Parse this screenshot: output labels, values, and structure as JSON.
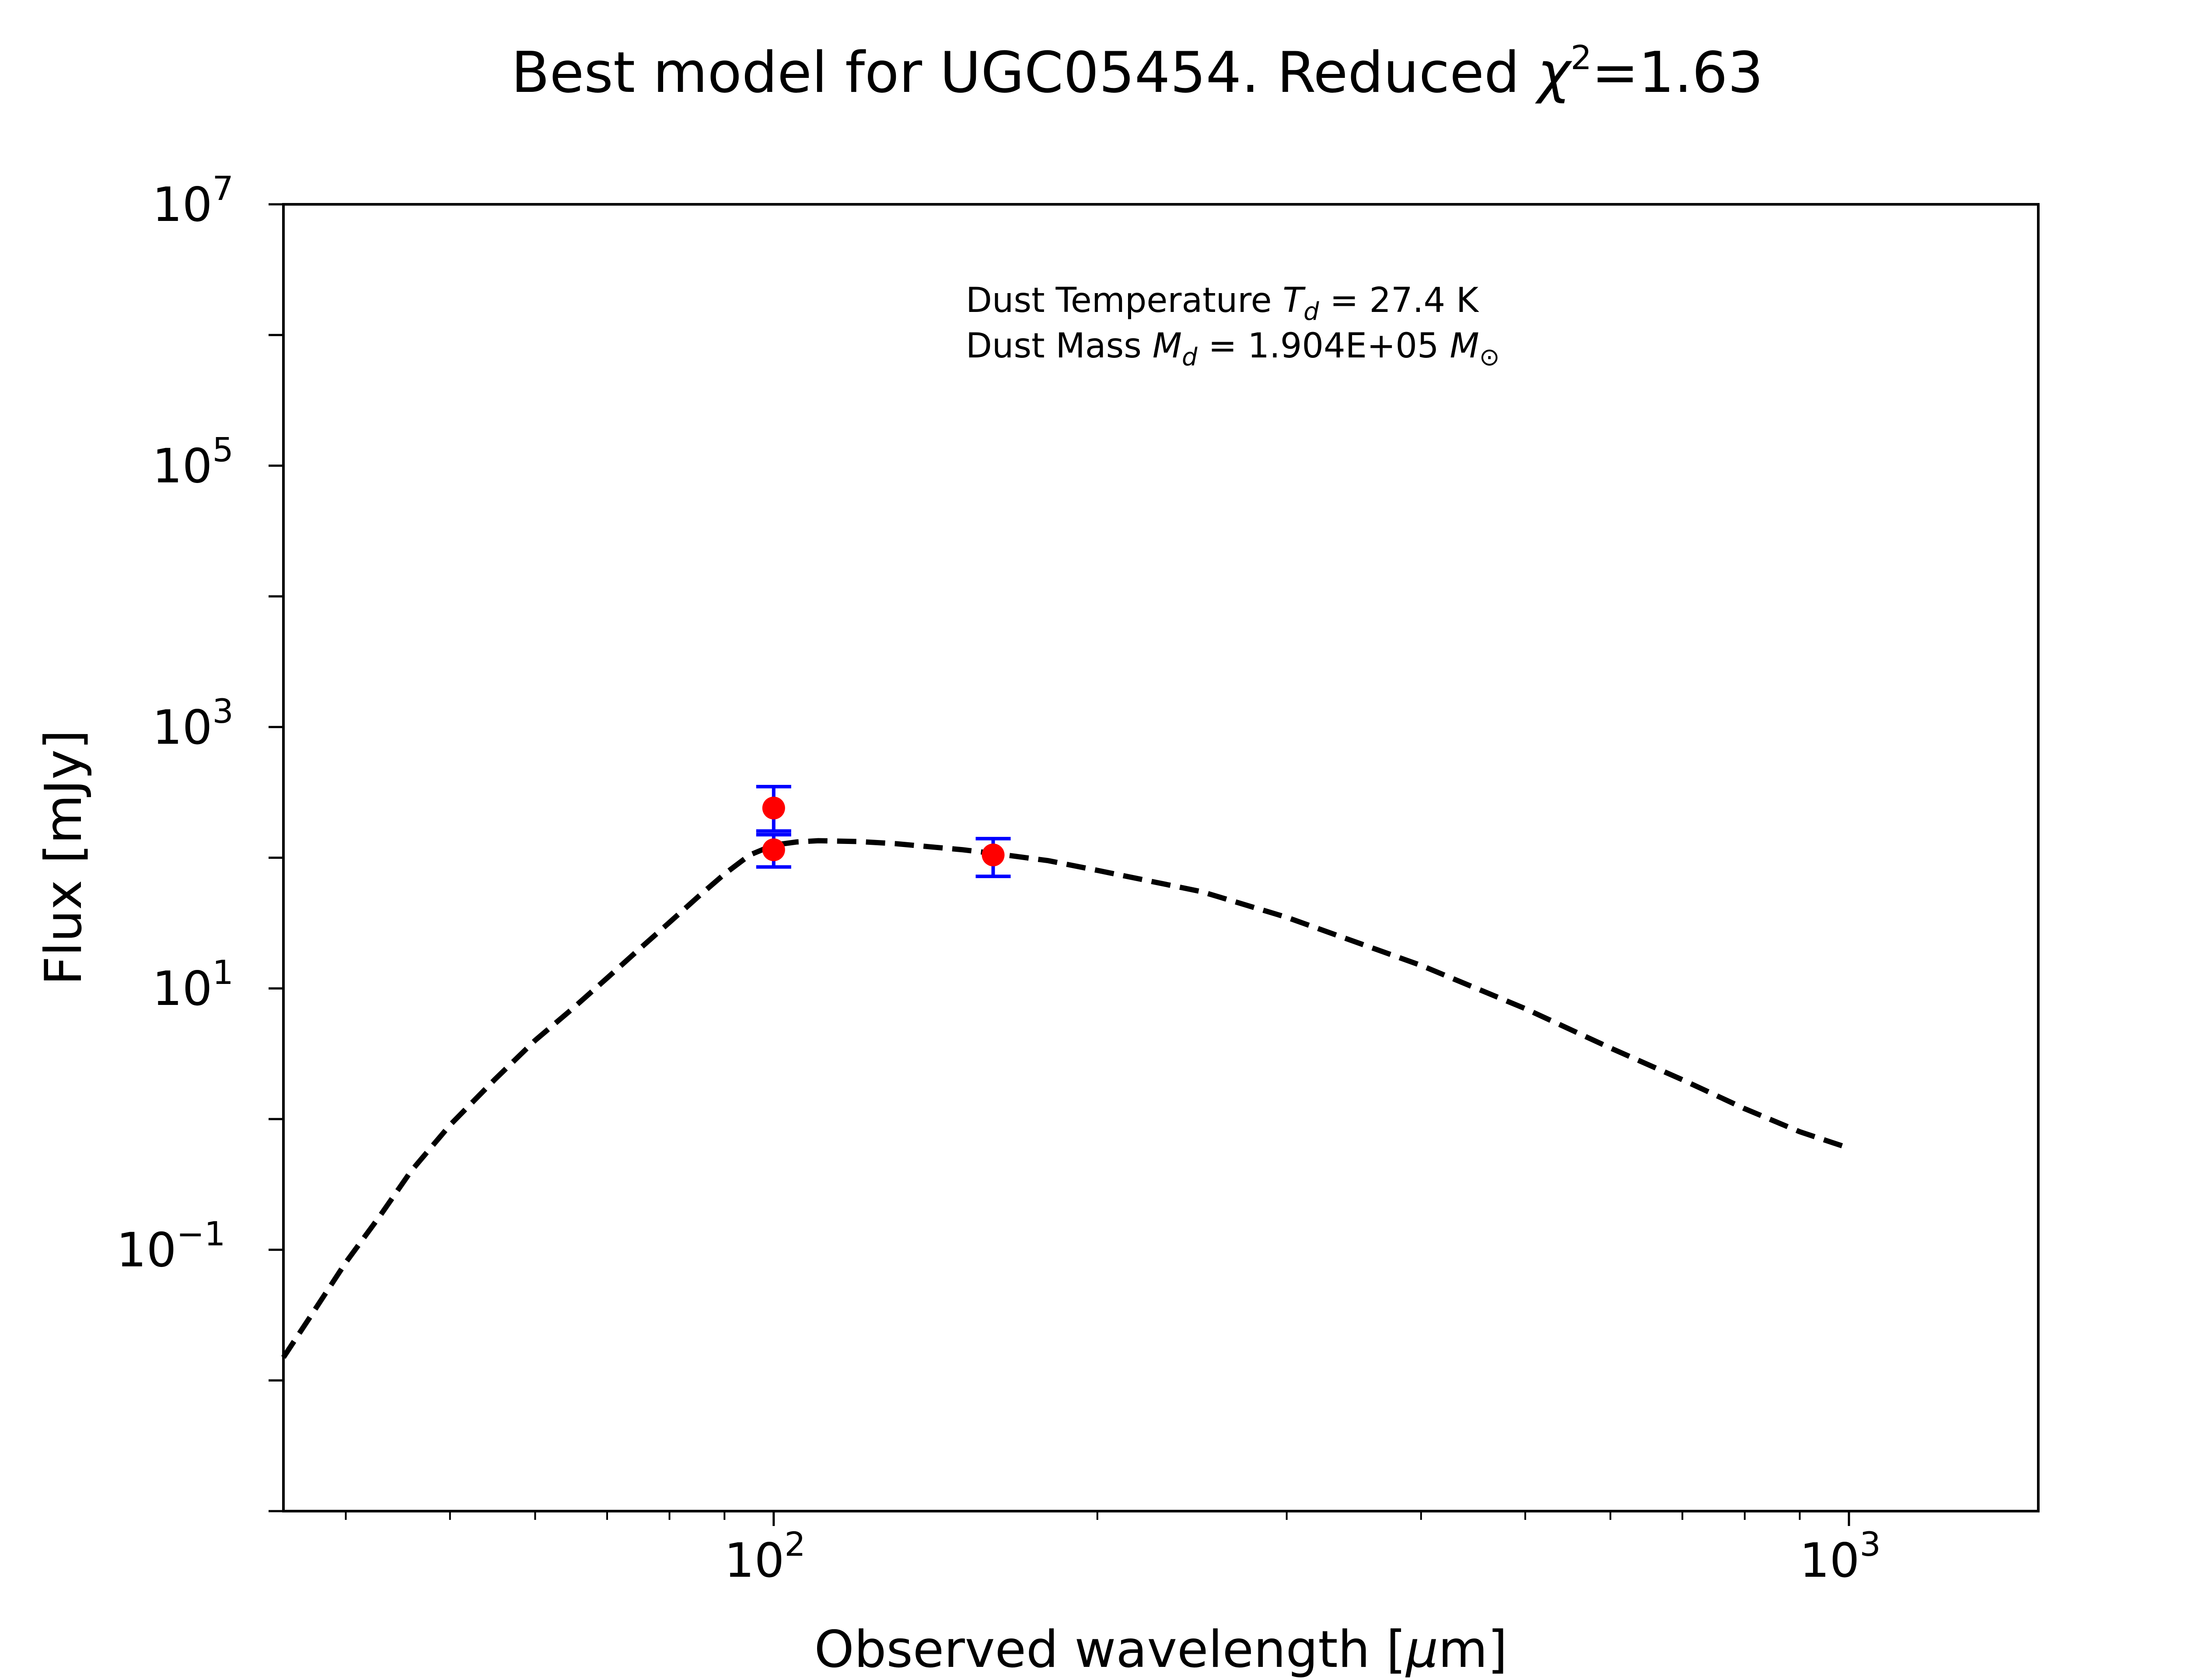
{
  "chart_data": {
    "type": "scatter",
    "title": {
      "main": "Best model for UGC05454. Reduced ",
      "chi": "χ",
      "chi_sup": "2",
      "value": "=1.63"
    },
    "xlabel": {
      "pre": "Observed wavelength [",
      "mu": "μ",
      "post": "m]"
    },
    "ylabel": "Flux [mJy]",
    "x_scale": "log",
    "y_scale": "log",
    "xlim": [
      35,
      1500
    ],
    "ylim": [
      0.001,
      10000000
    ],
    "x_ticks": [
      {
        "value": 100,
        "base": "10",
        "exp": "2"
      },
      {
        "value": 1000,
        "base": "10",
        "exp": "3"
      }
    ],
    "y_ticks": [
      {
        "value": 0.1,
        "base": "10",
        "exp": "−1"
      },
      {
        "value": 10,
        "base": "10",
        "exp": "1"
      },
      {
        "value": 1000,
        "base": "10",
        "exp": "3"
      },
      {
        "value": 100000,
        "base": "10",
        "exp": "5"
      },
      {
        "value": 10000000,
        "base": "10",
        "exp": "7"
      }
    ],
    "annotation": {
      "line1_pre": "Dust Temperature ",
      "line1_sym": "T",
      "line1_sub": "d",
      "line1_post": " = 27.4 K",
      "line2_pre": "Dust Mass ",
      "line2_sym": "M",
      "line2_sub": "d",
      "line2_post": " = 1.904E+05 ",
      "line2_unit_sym": "M",
      "line2_unit_sub": "⊙"
    },
    "observations": [
      {
        "x": 100,
        "y": 240,
        "yerr_low": 160,
        "yerr_high": 350
      },
      {
        "x": 100,
        "y": 115,
        "yerr_low": 85,
        "yerr_high": 150
      },
      {
        "x": 160,
        "y": 105,
        "yerr_low": 72,
        "yerr_high": 140
      }
    ],
    "model": {
      "style": "dashed",
      "color": "#000000",
      "points": [
        [
          35,
          0.015
        ],
        [
          37,
          0.03
        ],
        [
          40,
          0.08
        ],
        [
          43,
          0.18
        ],
        [
          46,
          0.4
        ],
        [
          50,
          0.9
        ],
        [
          55,
          2.0
        ],
        [
          60,
          4.0
        ],
        [
          65,
          7.0
        ],
        [
          70,
          12
        ],
        [
          75,
          20
        ],
        [
          80,
          32
        ],
        [
          85,
          50
        ],
        [
          90,
          75
        ],
        [
          95,
          105
        ],
        [
          100,
          125
        ],
        [
          105,
          132
        ],
        [
          110,
          135
        ],
        [
          120,
          133
        ],
        [
          130,
          128
        ],
        [
          150,
          115
        ],
        [
          160,
          108
        ],
        [
          180,
          95
        ],
        [
          200,
          80
        ],
        [
          250,
          55
        ],
        [
          300,
          35
        ],
        [
          400,
          15
        ],
        [
          500,
          7
        ],
        [
          600,
          3.5
        ],
        [
          700,
          2
        ],
        [
          800,
          1.2
        ],
        [
          900,
          0.8
        ],
        [
          1000,
          0.6
        ]
      ]
    },
    "colors": {
      "points": "#ff0000",
      "errorbars": "#0000ff",
      "model": "#000000",
      "axes": "#000000"
    }
  }
}
